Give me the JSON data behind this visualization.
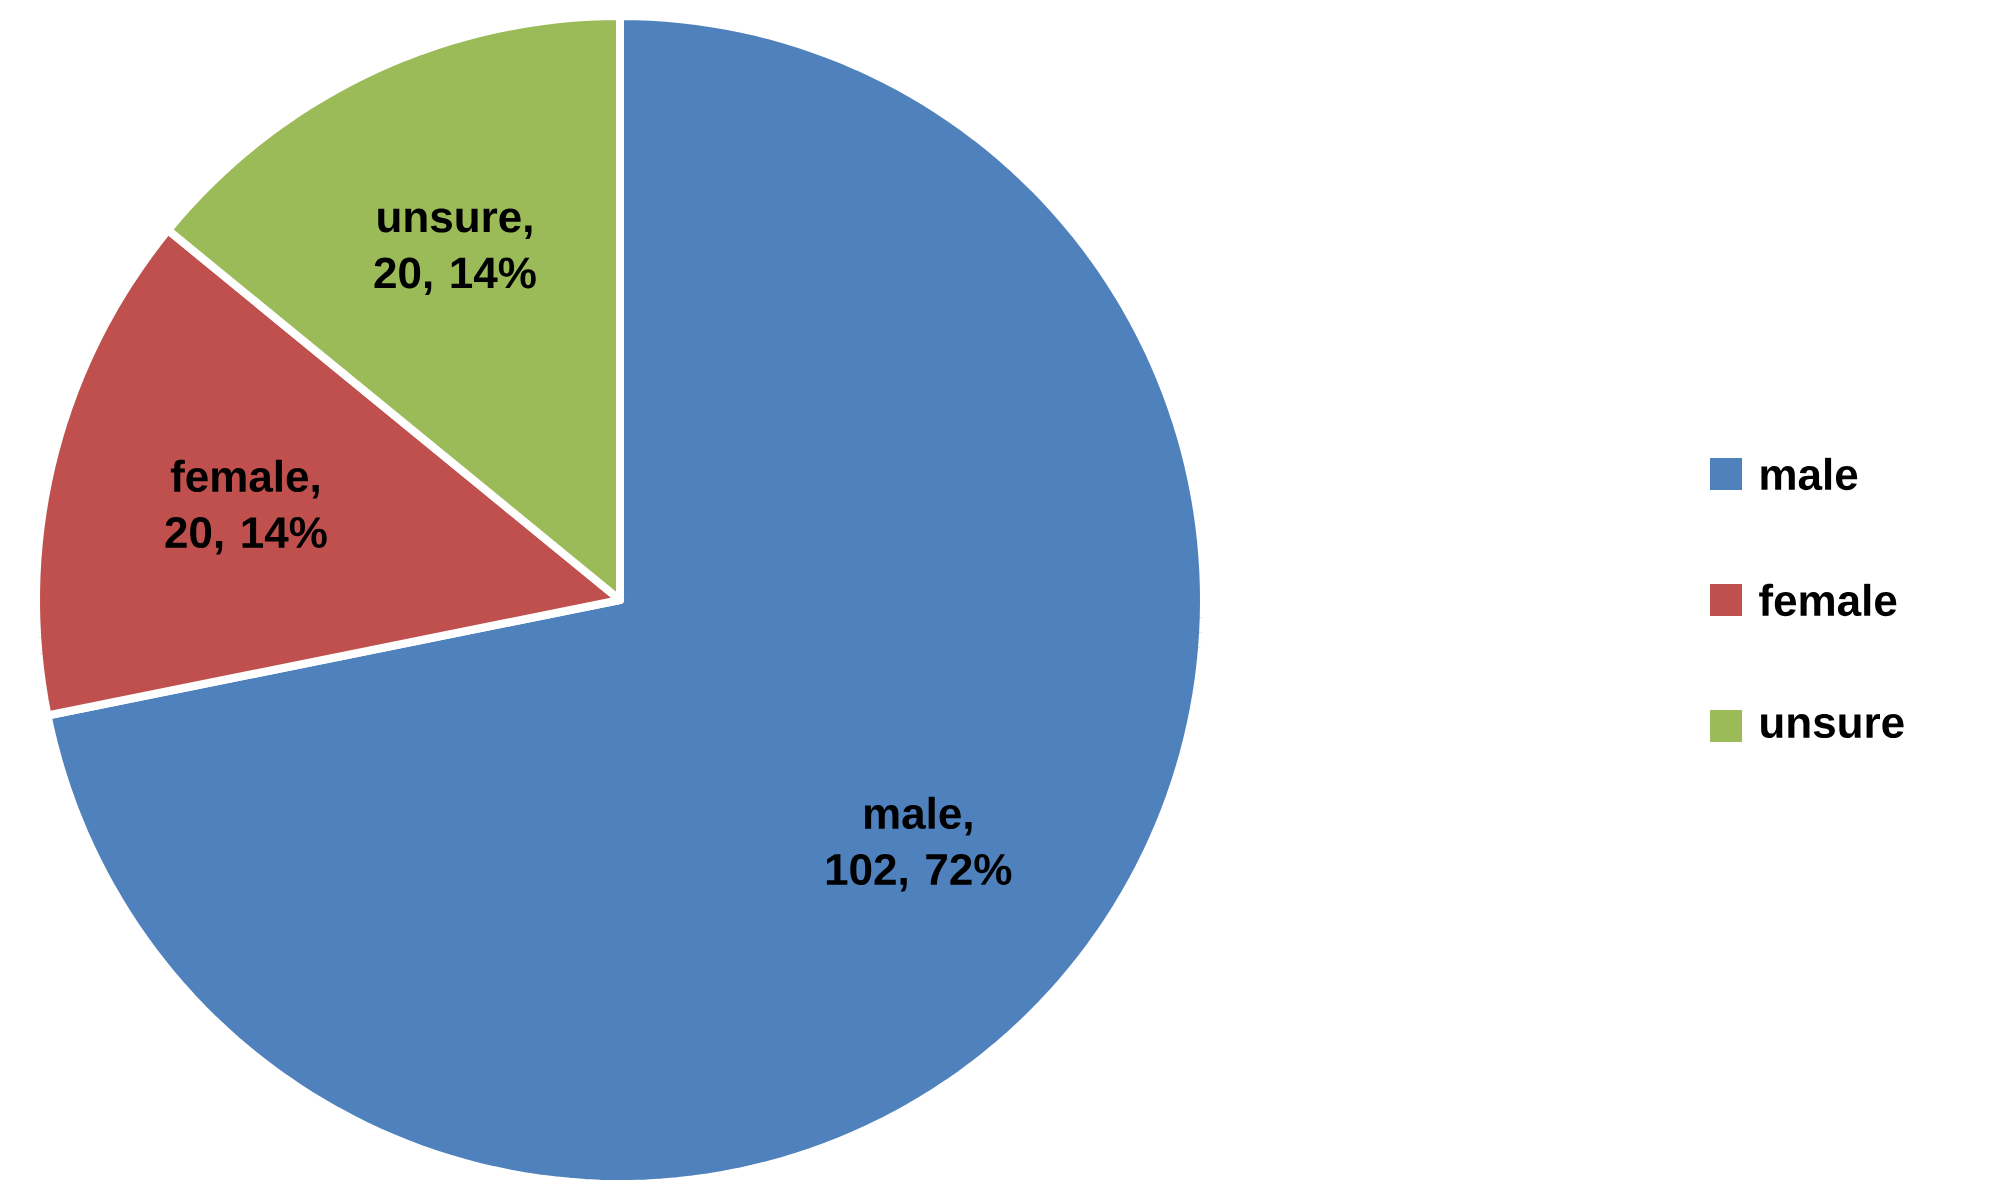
{
  "chart_data": {
    "type": "pie",
    "categories": [
      "male",
      "female",
      "unsure"
    ],
    "values": [
      102,
      20,
      20
    ],
    "colors": [
      "#4f81bd",
      "#c0504d",
      "#9bbb59"
    ],
    "value_labels": [
      "male, 102, 72%",
      "female, 20, 14%",
      "unsure, 20, 14%"
    ],
    "legend": "right"
  }
}
